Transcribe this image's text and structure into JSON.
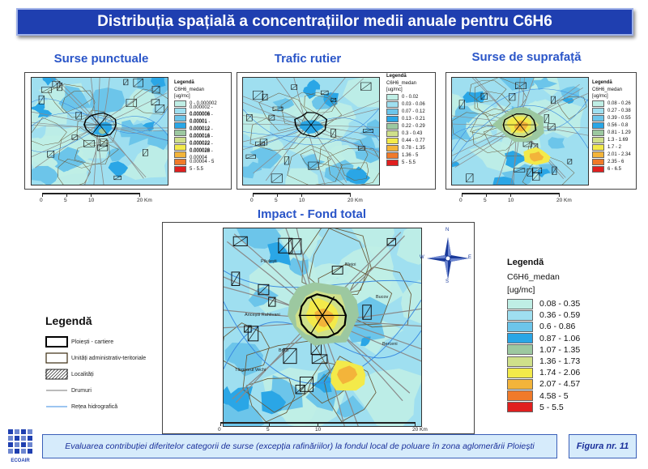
{
  "header": {
    "title": "Distribuția spațială a concentrațiilor medii anuale pentru C6H6"
  },
  "panels": [
    {
      "title": "Surse punctuale",
      "legend": {
        "heading": "Legendă",
        "field": "C6H6_medan",
        "unit": "[ug/mc]",
        "classes": [
          {
            "label": "0 - 0.000002",
            "color": "#bfeee5"
          },
          {
            "label": "0.000002 - 0.000006",
            "color": "#9fdff0"
          },
          {
            "label": "0.000006 - 0.00001",
            "color": "#6cc5ea"
          },
          {
            "label": "0.00001 - 0.000012",
            "color": "#2aa6e6"
          },
          {
            "label": "0.000012 - 0.000016",
            "color": "#9cc8a0"
          },
          {
            "label": "0.000016 - 0.000022",
            "color": "#cfe08a"
          },
          {
            "label": "0.000022 - 0.000028",
            "color": "#f3ea4a"
          },
          {
            "label": "0.000028 - 0.00004",
            "color": "#f3b43a"
          },
          {
            "label": "0.00004 - 5",
            "color": "#f07a2a"
          },
          {
            "label": "5 - 5.5",
            "color": "#e01f1f"
          }
        ]
      },
      "scale_ticks": [
        "0",
        "5",
        "10",
        "20"
      ],
      "scale_unit": "Km"
    },
    {
      "title": "Trafic rutier",
      "legend": {
        "heading": "Legendă",
        "field": "C6H6_medan",
        "unit": "[ug/mc]",
        "classes": [
          {
            "label": "0 - 0.02",
            "color": "#bfeee5"
          },
          {
            "label": "0.03 - 0.06",
            "color": "#9fdff0"
          },
          {
            "label": "0.07 - 0.12",
            "color": "#6cc5ea"
          },
          {
            "label": "0.13 - 0.21",
            "color": "#2aa6e6"
          },
          {
            "label": "0.22 - 0.29",
            "color": "#9cc8a0"
          },
          {
            "label": "0.3 - 0.43",
            "color": "#cfe08a"
          },
          {
            "label": "0.44 - 0.77",
            "color": "#f3ea4a"
          },
          {
            "label": "0.78 - 1.35",
            "color": "#f3b43a"
          },
          {
            "label": "1.36 - 5",
            "color": "#f07a2a"
          },
          {
            "label": "5 - 5.5",
            "color": "#e01f1f"
          }
        ]
      },
      "scale_ticks": [
        "0",
        "5",
        "10",
        "20"
      ],
      "scale_unit": "Km"
    },
    {
      "title": "Surse de suprafață",
      "legend": {
        "heading": "Legendă",
        "field": "C6H6_medan",
        "unit": "[ug/mc]",
        "classes": [
          {
            "label": "0.08 - 0.26",
            "color": "#bfeee5"
          },
          {
            "label": "0.27 - 0.38",
            "color": "#9fdff0"
          },
          {
            "label": "0.39 - 0.55",
            "color": "#6cc5ea"
          },
          {
            "label": "0.56 - 0.8",
            "color": "#2aa6e6"
          },
          {
            "label": "0.81 - 1.29",
            "color": "#9cc8a0"
          },
          {
            "label": "1.3 - 1.69",
            "color": "#cfe08a"
          },
          {
            "label": "1.7 - 2",
            "color": "#f3ea4a"
          },
          {
            "label": "2.01 - 2.34",
            "color": "#f3b43a"
          },
          {
            "label": "2.35 - 6",
            "color": "#f07a2a"
          },
          {
            "label": "6 - 6.5",
            "color": "#e01f1f"
          }
        ]
      },
      "scale_ticks": [
        "0",
        "5",
        "10",
        "20"
      ],
      "scale_unit": "Km"
    }
  ],
  "main": {
    "title": "Impact - Fond total",
    "compass": {
      "n": "N",
      "e": "E",
      "s": "S",
      "w": "W"
    },
    "legend": {
      "heading": "Legendă",
      "field": "C6H6_medan",
      "unit": "[ug/mc]",
      "classes": [
        {
          "label": "0.08 - 0.35",
          "color": "#bfeee5"
        },
        {
          "label": "0.36 - 0.59",
          "color": "#9fdff0"
        },
        {
          "label": "0.6 - 0.86",
          "color": "#6cc5ea"
        },
        {
          "label": "0.87 - 1.06",
          "color": "#2aa6e6"
        },
        {
          "label": "1.07 - 1.35",
          "color": "#9cc8a0"
        },
        {
          "label": "1.36 - 1.73",
          "color": "#cfe08a"
        },
        {
          "label": "1.74 - 2.06",
          "color": "#f3ea4a"
        },
        {
          "label": "2.07 - 4.57",
          "color": "#f3b43a"
        },
        {
          "label": "4.58 - 5",
          "color": "#f07a2a"
        },
        {
          "label": "5 - 5.5",
          "color": "#e01f1f"
        }
      ]
    },
    "scale_ticks": [
      "0",
      "5",
      "10",
      "20"
    ],
    "scale_unit": "Km",
    "place_labels": [
      "Păulești",
      "Ariceștii Rahtivani",
      "Blejoi",
      "Bucov",
      "Brazi",
      "Berceni",
      "Târgșorul Vechi"
    ]
  },
  "symbology": {
    "heading": "Legendă",
    "items": [
      {
        "label": "Ploiești - cartiere",
        "kind": "box-thick"
      },
      {
        "label": "Unități administrativ-teritoriale",
        "kind": "box-thin"
      },
      {
        "label": "Localități",
        "kind": "box-hatch"
      },
      {
        "label": "Drumuri",
        "kind": "line-gray"
      },
      {
        "label": "Rețea hidrografică",
        "kind": "line-blue"
      }
    ]
  },
  "footer": {
    "caption": "Evaluarea contribuției diferitelor categorii de surse (excepția rafinăriilor) la fondul local de poluare în zona aglomerării Ploiești",
    "figure": "Figura nr. 11"
  },
  "logo": {
    "text": "ECOAIR"
  }
}
